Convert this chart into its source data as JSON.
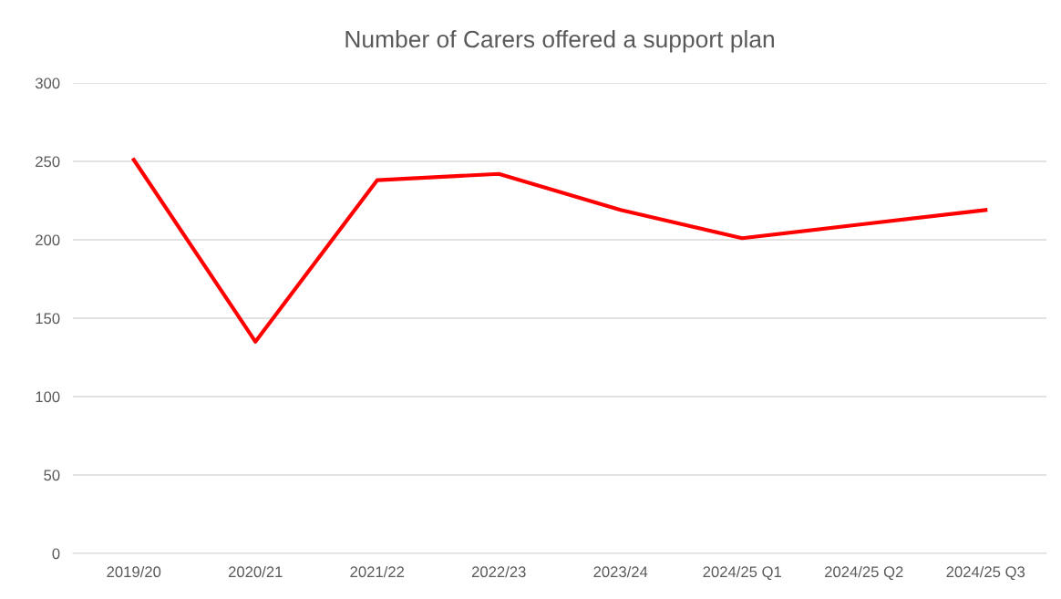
{
  "chart_data": {
    "type": "line",
    "title": "Number of Carers offered a support plan",
    "categories": [
      "2019/20",
      "2020/21",
      "2021/22",
      "2022/23",
      "2023/24",
      "2024/25 Q1",
      "2024/25 Q2",
      "2024/25 Q3"
    ],
    "series": [
      {
        "color": "#ff0000",
        "values": [
          251,
          135,
          238,
          242,
          219,
          201,
          210,
          219
        ]
      }
    ],
    "ylim": [
      0,
      300
    ],
    "yticks": [
      0,
      50,
      100,
      150,
      200,
      250,
      300
    ],
    "grid": "y",
    "legend": false,
    "marker": "none",
    "line_style": "solid"
  }
}
